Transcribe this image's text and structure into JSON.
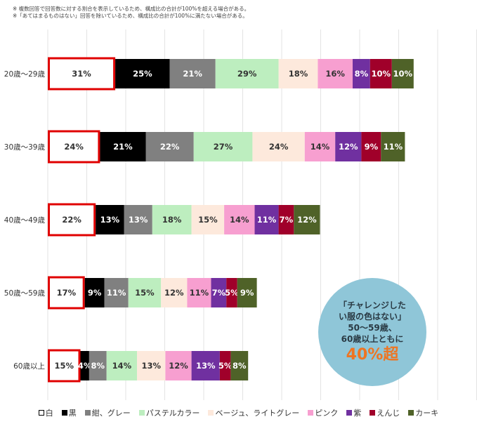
{
  "notes": [
    "※ 複数回答で回答数に対する割合を表示しているため、構成比の合計が100%を超える場合がある。",
    "※「あてはまるものはない」回答を除いているため、構成比の合計が100%に満たない場合がある。"
  ],
  "chart_data": {
    "type": "bar",
    "orientation": "horizontal-stacked",
    "categories": [
      "20歳～29歳",
      "30歳～39歳",
      "40歳～49歳",
      "50歳～59歳",
      "60歳以上"
    ],
    "series": [
      {
        "name": "白",
        "color": "#ffffff",
        "values": [
          31,
          24,
          22,
          17,
          15
        ]
      },
      {
        "name": "黒",
        "color": "#000000",
        "values": [
          25,
          21,
          13,
          9,
          4
        ]
      },
      {
        "name": "紺、グレー",
        "color": "#808080",
        "values": [
          21,
          22,
          13,
          11,
          8
        ]
      },
      {
        "name": "パステルカラー",
        "color": "#bdeebf",
        "values": [
          29,
          27,
          18,
          15,
          14
        ]
      },
      {
        "name": "ベージュ、ライトグレー",
        "color": "#fde9dc",
        "values": [
          18,
          24,
          15,
          12,
          13
        ]
      },
      {
        "name": "ピンク",
        "color": "#f79fd0",
        "values": [
          16,
          14,
          14,
          11,
          12
        ]
      },
      {
        "name": "紫",
        "color": "#7030a0",
        "values": [
          8,
          12,
          11,
          7,
          13
        ]
      },
      {
        "name": "えんじ",
        "color": "#a0002a",
        "values": [
          10,
          9,
          7,
          5,
          5
        ]
      },
      {
        "name": "カーキ",
        "color": "#4f6228",
        "values": [
          10,
          11,
          12,
          9,
          8
        ]
      }
    ],
    "value_suffix": "%",
    "highlight_series": "白",
    "highlight_color": "#e00000",
    "grid": true,
    "legend_position": "bottom"
  },
  "callout": {
    "lines": [
      "「チャレンジした",
      "い服の色はない」",
      "50～59歳、",
      "60歳以上ともに"
    ],
    "emphasis": "40%超",
    "emphasis_color": "#ee7522",
    "background": "#8fc6d8"
  }
}
